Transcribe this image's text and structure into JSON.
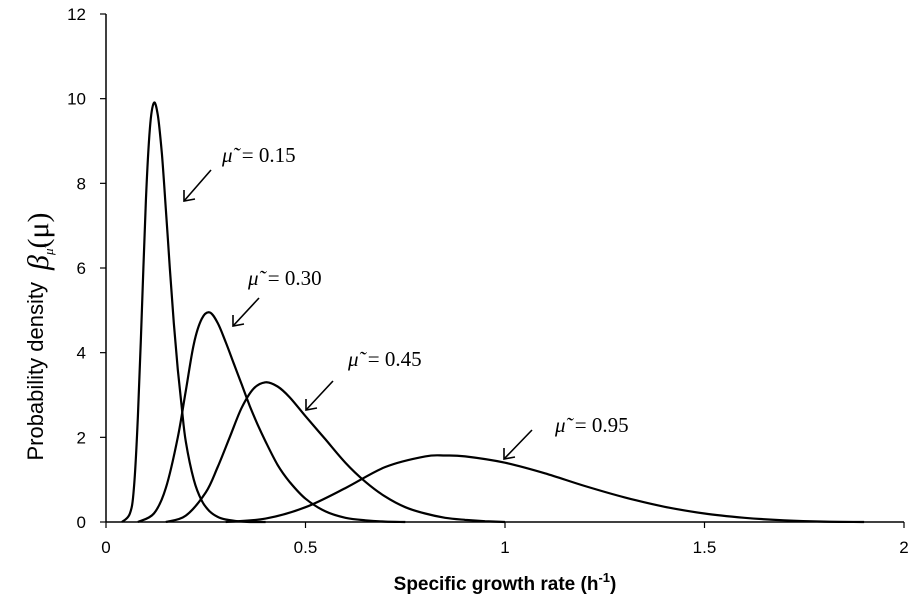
{
  "chart_data": {
    "type": "line",
    "xlabel": "Specific growth rate (h",
    "xlabel_sup": "-1",
    "xlabel_close": ")",
    "ylabel": "Probability density",
    "ylabel_symbol": "β",
    "ylabel_sub": "μ̃",
    "ylabel_arg": "(μ)",
    "xlim": [
      0,
      2
    ],
    "ylim": [
      0,
      12
    ],
    "xticks": [
      0,
      0.5,
      1,
      1.5,
      2
    ],
    "xtick_labels": [
      "0",
      "0.5",
      "1",
      "1.5",
      "2"
    ],
    "yticks": [
      0,
      2,
      4,
      6,
      8,
      10,
      12
    ],
    "ytick_labels": [
      "0",
      "2",
      "4",
      "6",
      "8",
      "10",
      "12"
    ],
    "grid": false,
    "legend": "none",
    "line_color": "#000000",
    "series": [
      {
        "annotation_symbol": "μ̃",
        "annotation_value": "= 0.15",
        "x": [
          0.04,
          0.06,
          0.07,
          0.08,
          0.09,
          0.1,
          0.11,
          0.12,
          0.13,
          0.14,
          0.15,
          0.16,
          0.17,
          0.18,
          0.19,
          0.2,
          0.22,
          0.24,
          0.26,
          0.28,
          0.3,
          0.33,
          0.36,
          0.4
        ],
        "y": [
          0.0,
          0.2,
          0.8,
          2.5,
          5.0,
          7.6,
          9.3,
          9.9,
          9.6,
          8.7,
          7.4,
          6.0,
          4.7,
          3.6,
          2.7,
          1.9,
          1.0,
          0.5,
          0.25,
          0.12,
          0.06,
          0.02,
          0.0,
          0.0
        ]
      },
      {
        "annotation_symbol": "μ̃",
        "annotation_value": "= 0.30",
        "x": [
          0.08,
          0.12,
          0.15,
          0.18,
          0.2,
          0.22,
          0.24,
          0.26,
          0.28,
          0.3,
          0.32,
          0.34,
          0.36,
          0.38,
          0.4,
          0.43,
          0.46,
          0.5,
          0.55,
          0.6,
          0.65,
          0.7,
          0.75
        ],
        "y": [
          0.0,
          0.2,
          0.8,
          2.0,
          3.1,
          4.2,
          4.8,
          4.95,
          4.7,
          4.25,
          3.75,
          3.25,
          2.75,
          2.3,
          1.9,
          1.35,
          0.95,
          0.55,
          0.25,
          0.1,
          0.04,
          0.01,
          0.0
        ]
      },
      {
        "annotation_symbol": "μ̃",
        "annotation_value": "= 0.45",
        "x": [
          0.15,
          0.2,
          0.25,
          0.28,
          0.31,
          0.34,
          0.37,
          0.4,
          0.43,
          0.46,
          0.5,
          0.55,
          0.6,
          0.65,
          0.7,
          0.75,
          0.8,
          0.85,
          0.9,
          0.95,
          1.0
        ],
        "y": [
          0.0,
          0.15,
          0.7,
          1.3,
          2.0,
          2.7,
          3.15,
          3.3,
          3.2,
          2.95,
          2.5,
          1.95,
          1.4,
          0.95,
          0.6,
          0.35,
          0.2,
          0.1,
          0.05,
          0.02,
          0.0
        ]
      },
      {
        "annotation_symbol": "μ̃",
        "annotation_value": "= 0.95",
        "x": [
          0.3,
          0.4,
          0.5,
          0.6,
          0.7,
          0.8,
          0.85,
          0.9,
          1.0,
          1.1,
          1.2,
          1.3,
          1.4,
          1.5,
          1.6,
          1.7,
          1.8,
          1.9
        ],
        "y": [
          0.0,
          0.08,
          0.35,
          0.8,
          1.3,
          1.55,
          1.57,
          1.55,
          1.4,
          1.15,
          0.85,
          0.58,
          0.36,
          0.2,
          0.1,
          0.04,
          0.01,
          0.0
        ]
      }
    ]
  }
}
